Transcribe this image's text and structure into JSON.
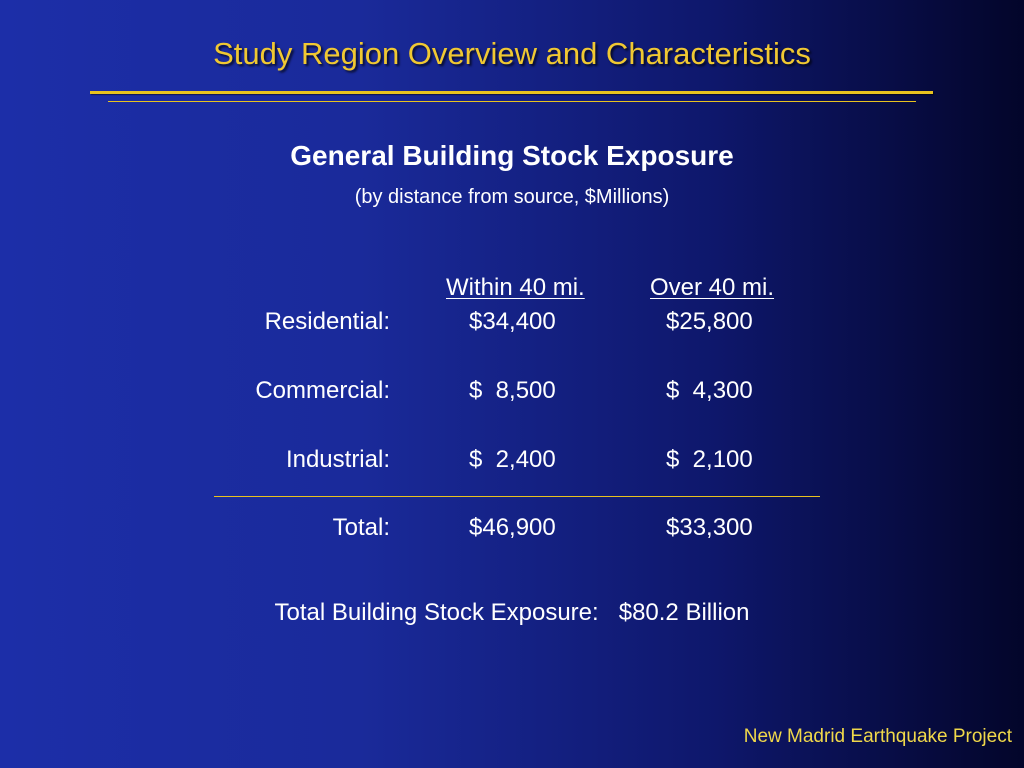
{
  "slide": {
    "title": "Study Region Overview and Characteristics",
    "subtitle": "General Building Stock Exposure",
    "caption": "(by distance from source, $Millions)",
    "footer": "New Madrid Earthquake Project"
  },
  "table": {
    "headers": [
      "Within 40 mi.",
      "Over 40 mi."
    ],
    "rows": [
      {
        "label": "Residential:",
        "within": "$34,400",
        "over": "$25,800"
      },
      {
        "label": "Commercial:",
        "within": "$  8,500",
        "over": "$  4,300"
      },
      {
        "label": "Industrial:",
        "within": "$  2,400",
        "over": "$  2,100"
      }
    ],
    "total": {
      "label": "Total:",
      "within": "$46,900",
      "over": "$33,300"
    }
  },
  "summary": {
    "label": "Total Building Stock Exposure:",
    "value": "$80.2 Billion"
  },
  "colors": {
    "title": "#f0c832",
    "rule": "#e8c21f",
    "text": "#ffffff",
    "background_left": "#1c2ea8",
    "background_right": "#03052a"
  }
}
